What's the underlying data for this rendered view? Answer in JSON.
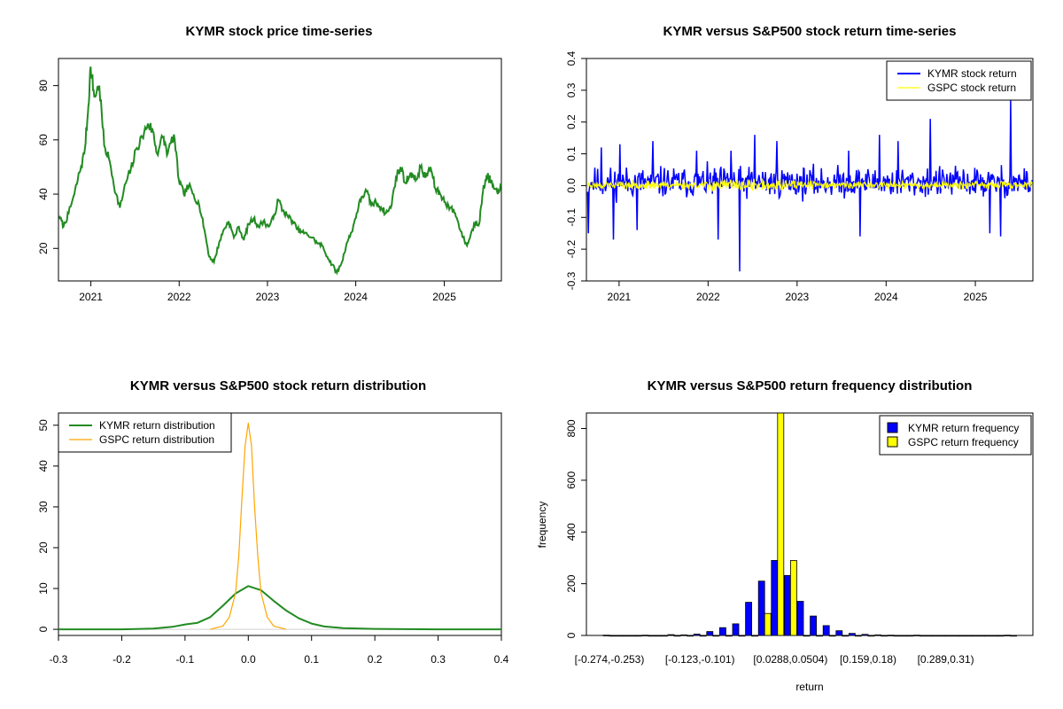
{
  "chart_data": [
    {
      "type": "line",
      "title": "KYMR stock price time-series",
      "xlabel": "",
      "ylabel": "",
      "x_ticks": [
        "2021",
        "2022",
        "2023",
        "2024",
        "2025"
      ],
      "y_ticks": [
        "20",
        "40",
        "60",
        "80"
      ],
      "xlim": [
        "2020-08-20",
        "2025-08-25"
      ],
      "ylim": [
        8,
        90
      ],
      "series": [
        {
          "color": "#228B22",
          "points": [
            [
              "2020-08-24",
              32
            ],
            [
              "2020-09-10",
              28
            ],
            [
              "2020-10-01",
              33
            ],
            [
              "2020-10-25",
              40
            ],
            [
              "2020-11-15",
              48
            ],
            [
              "2020-12-05",
              55
            ],
            [
              "2020-12-20",
              70
            ],
            [
              "2020-12-31",
              87
            ],
            [
              "2021-01-15",
              76
            ],
            [
              "2021-02-05",
              80
            ],
            [
              "2021-02-25",
              58
            ],
            [
              "2021-03-20",
              52
            ],
            [
              "2021-04-15",
              40
            ],
            [
              "2021-05-01",
              35
            ],
            [
              "2021-05-25",
              44
            ],
            [
              "2021-06-15",
              49
            ],
            [
              "2021-07-10",
              57
            ],
            [
              "2021-08-01",
              61
            ],
            [
              "2021-08-25",
              66
            ],
            [
              "2021-09-15",
              63
            ],
            [
              "2021-10-01",
              55
            ],
            [
              "2021-10-25",
              61
            ],
            [
              "2021-11-15",
              55
            ],
            [
              "2021-12-10",
              62
            ],
            [
              "2021-12-31",
              45
            ],
            [
              "2022-01-20",
              40
            ],
            [
              "2022-02-10",
              43
            ],
            [
              "2022-03-01",
              40
            ],
            [
              "2022-03-25",
              36
            ],
            [
              "2022-04-15",
              27
            ],
            [
              "2022-05-05",
              17
            ],
            [
              "2022-05-25",
              15
            ],
            [
              "2022-06-15",
              22
            ],
            [
              "2022-07-05",
              27
            ],
            [
              "2022-07-25",
              30
            ],
            [
              "2022-08-15",
              24
            ],
            [
              "2022-09-05",
              28
            ],
            [
              "2022-09-25",
              23
            ],
            [
              "2022-10-15",
              29
            ],
            [
              "2022-11-05",
              31
            ],
            [
              "2022-11-25",
              28
            ],
            [
              "2022-12-15",
              30
            ],
            [
              "2023-01-05",
              28
            ],
            [
              "2023-01-25",
              31
            ],
            [
              "2023-02-15",
              38
            ],
            [
              "2023-03-05",
              34
            ],
            [
              "2023-03-25",
              32
            ],
            [
              "2023-04-15",
              30
            ],
            [
              "2023-05-05",
              27
            ],
            [
              "2023-05-25",
              26
            ],
            [
              "2023-06-15",
              25
            ],
            [
              "2023-07-05",
              24
            ],
            [
              "2023-07-25",
              22
            ],
            [
              "2023-08-15",
              21
            ],
            [
              "2023-09-05",
              17
            ],
            [
              "2023-09-25",
              14
            ],
            [
              "2023-10-15",
              11
            ],
            [
              "2023-11-05",
              15
            ],
            [
              "2023-11-25",
              22
            ],
            [
              "2023-12-15",
              26
            ],
            [
              "2024-01-05",
              33
            ],
            [
              "2024-01-25",
              39
            ],
            [
              "2024-02-15",
              41
            ],
            [
              "2024-03-05",
              36
            ],
            [
              "2024-03-25",
              37
            ],
            [
              "2024-04-15",
              35
            ],
            [
              "2024-05-05",
              33
            ],
            [
              "2024-05-25",
              35
            ],
            [
              "2024-06-15",
              46
            ],
            [
              "2024-07-05",
              50
            ],
            [
              "2024-07-25",
              44
            ],
            [
              "2024-08-15",
              48
            ],
            [
              "2024-09-05",
              45
            ],
            [
              "2024-09-25",
              50
            ],
            [
              "2024-10-15",
              46
            ],
            [
              "2024-11-05",
              50
            ],
            [
              "2024-11-25",
              42
            ],
            [
              "2024-12-15",
              40
            ],
            [
              "2025-01-05",
              37
            ],
            [
              "2025-01-25",
              35
            ],
            [
              "2025-02-15",
              33
            ],
            [
              "2025-03-01",
              29
            ],
            [
              "2025-03-20",
              24
            ],
            [
              "2025-04-05",
              21
            ],
            [
              "2025-04-20",
              25
            ],
            [
              "2025-05-10",
              30
            ],
            [
              "2025-05-25",
              29
            ],
            [
              "2025-06-10",
              41
            ],
            [
              "2025-06-25",
              47
            ],
            [
              "2025-07-10",
              45
            ],
            [
              "2025-07-25",
              42
            ],
            [
              "2025-08-10",
              40
            ],
            [
              "2025-08-22",
              44
            ]
          ]
        }
      ]
    },
    {
      "type": "line",
      "title": "KYMR versus S&P500 stock return time-series",
      "xlabel": "",
      "ylabel": "",
      "x_ticks": [
        "2021",
        "2022",
        "2023",
        "2024",
        "2025"
      ],
      "y_ticks": [
        "-0.3",
        "-0.2",
        "-0.1",
        "0.0",
        "0.1",
        "0.2",
        "0.3",
        "0.4"
      ],
      "xlim": [
        "2020-08-20",
        "2025-08-25"
      ],
      "ylim": [
        -0.3,
        0.4
      ],
      "legend": {
        "position": "top-right",
        "entries": [
          "KYMR stock return",
          "GSPC stock return"
        ]
      },
      "series": [
        {
          "name": "KYMR stock return",
          "color": "#0000FF",
          "amplitude": 0.07,
          "spikes": [
            [
              "2020-08-27",
              -0.15
            ],
            [
              "2020-10-20",
              0.12
            ],
            [
              "2020-12-10",
              -0.17
            ],
            [
              "2021-01-05",
              0.13
            ],
            [
              "2021-03-15",
              -0.14
            ],
            [
              "2021-05-20",
              0.14
            ],
            [
              "2021-11-15",
              0.11
            ],
            [
              "2022-02-10",
              -0.17
            ],
            [
              "2022-04-05",
              0.11
            ],
            [
              "2022-05-09",
              -0.27
            ],
            [
              "2022-07-10",
              0.16
            ],
            [
              "2022-10-10",
              0.14
            ],
            [
              "2023-08-01",
              0.11
            ],
            [
              "2023-09-15",
              -0.16
            ],
            [
              "2023-12-05",
              0.16
            ],
            [
              "2024-02-20",
              0.14
            ],
            [
              "2024-07-01",
              0.21
            ],
            [
              "2025-03-01",
              -0.15
            ],
            [
              "2025-04-15",
              -0.16
            ],
            [
              "2025-05-27",
              0.27
            ]
          ]
        },
        {
          "name": "GSPC stock return",
          "color": "#FFFF00",
          "amplitude": 0.015
        }
      ]
    },
    {
      "type": "line",
      "title": "KYMR versus S&P500 stock return distribution",
      "xlabel": "",
      "ylabel": "",
      "x_ticks": [
        "-0.3",
        "-0.2",
        "-0.1",
        "0.0",
        "0.1",
        "0.2",
        "0.3",
        "0.4"
      ],
      "y_ticks": [
        "0",
        "10",
        "20",
        "30",
        "40",
        "50"
      ],
      "xlim": [
        -0.3,
        0.4
      ],
      "ylim": [
        -1.5,
        53
      ],
      "legend": {
        "position": "top-left",
        "entries": [
          "KYMR return distribution",
          "GSPC return distribution"
        ]
      },
      "series": [
        {
          "name": "KYMR return distribution",
          "color": "#228B22",
          "x": [
            -0.3,
            -0.2,
            -0.15,
            -0.12,
            -0.1,
            -0.08,
            -0.06,
            -0.04,
            -0.02,
            0.0,
            0.02,
            0.04,
            0.06,
            0.08,
            0.1,
            0.12,
            0.15,
            0.2,
            0.3,
            0.4
          ],
          "y": [
            0,
            0,
            0.2,
            0.6,
            1.2,
            1.6,
            3.0,
            5.8,
            8.8,
            10.6,
            9.6,
            7.0,
            4.6,
            2.7,
            1.4,
            0.7,
            0.3,
            0.1,
            0,
            0
          ]
        },
        {
          "name": "GSPC return distribution",
          "color": "#FFA500",
          "x": [
            -0.06,
            -0.04,
            -0.03,
            -0.02,
            -0.015,
            -0.01,
            -0.005,
            0.0,
            0.005,
            0.01,
            0.015,
            0.02,
            0.03,
            0.04,
            0.06
          ],
          "y": [
            0,
            0.8,
            3,
            9,
            18,
            32,
            45,
            50.5,
            45,
            30,
            18,
            9,
            3,
            0.8,
            0
          ]
        }
      ]
    },
    {
      "type": "bar",
      "title": "KYMR versus S&P500 return frequency distribution",
      "xlabel": "return",
      "ylabel": "frequency",
      "x_tick_labels": [
        "[-0.274,-0.253)",
        "[-0.123,-0.101)",
        "[0.0288,0.0504)",
        "[0.159,0.18)",
        "[0.289,0.31)"
      ],
      "x_tick_label_bins": [
        0,
        7,
        14,
        20,
        26
      ],
      "y_ticks": [
        "0",
        "200",
        "400",
        "600",
        "800"
      ],
      "ylim": [
        0,
        860
      ],
      "legend": {
        "position": "top-right",
        "entries": [
          "KYMR return frequency",
          "GSPC return frequency"
        ]
      },
      "series": [
        {
          "name": "KYMR return frequency",
          "color": "#0000FF",
          "values": [
            1,
            0,
            0,
            1,
            0,
            3,
            2,
            5,
            15,
            30,
            45,
            128,
            210,
            290,
            232,
            132,
            75,
            38,
            18,
            8,
            4,
            2,
            1,
            0,
            1,
            0,
            0,
            0,
            0,
            0,
            0,
            1
          ]
        },
        {
          "name": "GSPC return frequency",
          "color": "#FFFF00",
          "values": [
            0,
            0,
            0,
            0,
            0,
            0,
            0,
            0,
            0,
            0,
            0,
            0,
            85,
            900,
            290,
            0,
            0,
            0,
            0,
            0,
            0,
            0,
            0,
            0,
            0,
            0,
            0,
            0,
            0,
            0,
            0,
            0
          ]
        }
      ]
    }
  ]
}
